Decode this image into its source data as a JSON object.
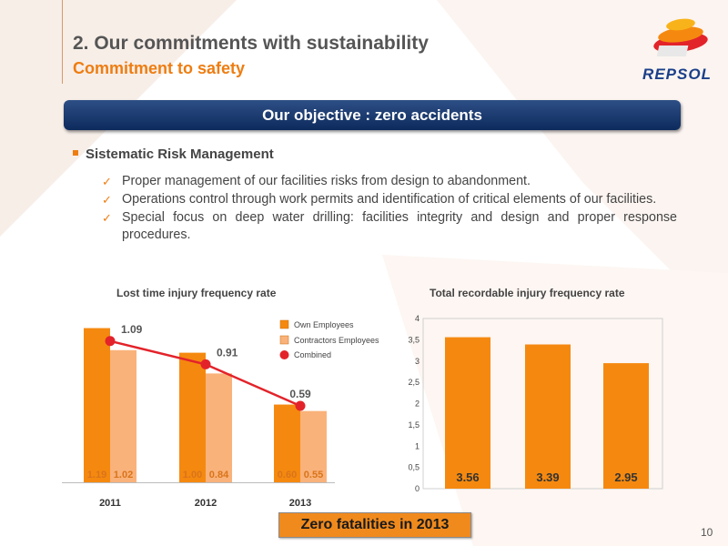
{
  "header": {
    "title": "2. Our commitments with sustainability",
    "subtitle": "Commitment to safety",
    "logo_text": "REPSOL"
  },
  "banner": {
    "text": "Our objective : zero accidents"
  },
  "section": {
    "heading": "Sistematic Risk Management",
    "bullets": [
      "Proper management of our facilities risks from design to abandonment.",
      "Operations control through work permits and identification of critical elements of our facilities.",
      "Special focus on deep water drilling: facilities integrity and design and proper response procedures."
    ]
  },
  "chart_data": [
    {
      "type": "bar",
      "title": "Lost time injury frequency rate",
      "categories": [
        "2011",
        "2012",
        "2013"
      ],
      "series": [
        {
          "name": "Own Employees",
          "values": [
            1.19,
            1.0,
            0.6
          ],
          "color": "#f5890f"
        },
        {
          "name": "Contractors Employees",
          "values": [
            1.02,
            0.84,
            0.55
          ],
          "color": "#f9b27a"
        },
        {
          "name": "Combined",
          "values": [
            1.09,
            0.91,
            0.59
          ],
          "color": "#e3232a",
          "render": "line"
        }
      ],
      "data_labels": {
        "own": [
          "1.19",
          "1.00",
          "0.60"
        ],
        "contractors": [
          "1.02",
          "0.84",
          "0.55"
        ],
        "combined": [
          "1.09",
          "0.91",
          "0.59"
        ]
      },
      "ylim": [
        0,
        1.25
      ],
      "legend": "right"
    },
    {
      "type": "bar",
      "title": "Total recordable injury frequency rate",
      "categories": [
        "",
        "",
        ""
      ],
      "values": [
        3.56,
        3.39,
        2.95
      ],
      "value_labels": [
        "3.56",
        "3.39",
        "2.95"
      ],
      "yticks": [
        "0",
        "0,5",
        "1",
        "1,5",
        "2",
        "2,5",
        "3",
        "3,5",
        "4"
      ],
      "ylim": [
        0,
        4
      ],
      "grid": false,
      "color": "#f5890f"
    }
  ],
  "footer": {
    "banner": "Zero fatalities in 2013",
    "page_number": "10"
  },
  "colors": {
    "accent_orange": "#ee7d11",
    "banner_blue": "#0d2a5c",
    "combined_red": "#e3232a"
  }
}
